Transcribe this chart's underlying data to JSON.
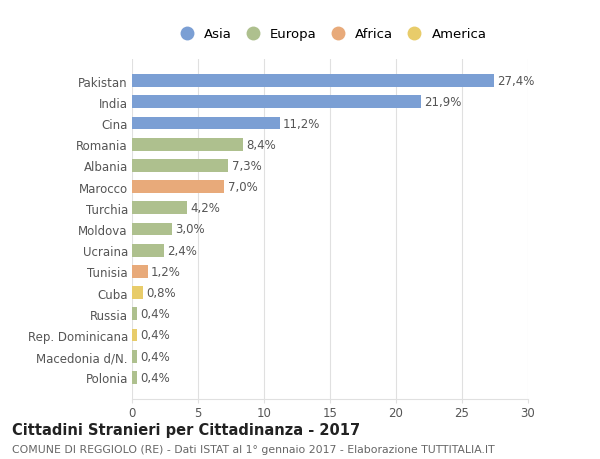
{
  "categories": [
    "Pakistan",
    "India",
    "Cina",
    "Romania",
    "Albania",
    "Marocco",
    "Turchia",
    "Moldova",
    "Ucraina",
    "Tunisia",
    "Cuba",
    "Russia",
    "Rep. Dominicana",
    "Macedonia d/N.",
    "Polonia"
  ],
  "values": [
    27.4,
    21.9,
    11.2,
    8.4,
    7.3,
    7.0,
    4.2,
    3.0,
    2.4,
    1.2,
    0.8,
    0.4,
    0.4,
    0.4,
    0.4
  ],
  "labels": [
    "27,4%",
    "21,9%",
    "11,2%",
    "8,4%",
    "7,3%",
    "7,0%",
    "4,2%",
    "3,0%",
    "2,4%",
    "1,2%",
    "0,8%",
    "0,4%",
    "0,4%",
    "0,4%",
    "0,4%"
  ],
  "bar_colors": [
    "#7b9fd4",
    "#7b9fd4",
    "#7b9fd4",
    "#aec08e",
    "#aec08e",
    "#e8aa7a",
    "#aec08e",
    "#aec08e",
    "#aec08e",
    "#e8aa7a",
    "#e8cc6a",
    "#aec08e",
    "#e8cc6a",
    "#aec08e",
    "#aec08e"
  ],
  "continent_colors": {
    "Asia": "#7b9fd4",
    "Europa": "#aec08e",
    "Africa": "#e8aa7a",
    "America": "#e8cc6a"
  },
  "xlim": [
    0,
    30
  ],
  "xticks": [
    0,
    5,
    10,
    15,
    20,
    25,
    30
  ],
  "title": "Cittadini Stranieri per Cittadinanza - 2017",
  "subtitle": "COMUNE DI REGGIOLO (RE) - Dati ISTAT al 1° gennaio 2017 - Elaborazione TUTTITALIA.IT",
  "background_color": "#ffffff",
  "grid_color": "#e0e0e0",
  "bar_height": 0.6,
  "label_fontsize": 8.5,
  "tick_fontsize": 8.5,
  "ytick_fontsize": 8.5,
  "title_fontsize": 10.5,
  "subtitle_fontsize": 7.8,
  "legend_fontsize": 9.5
}
